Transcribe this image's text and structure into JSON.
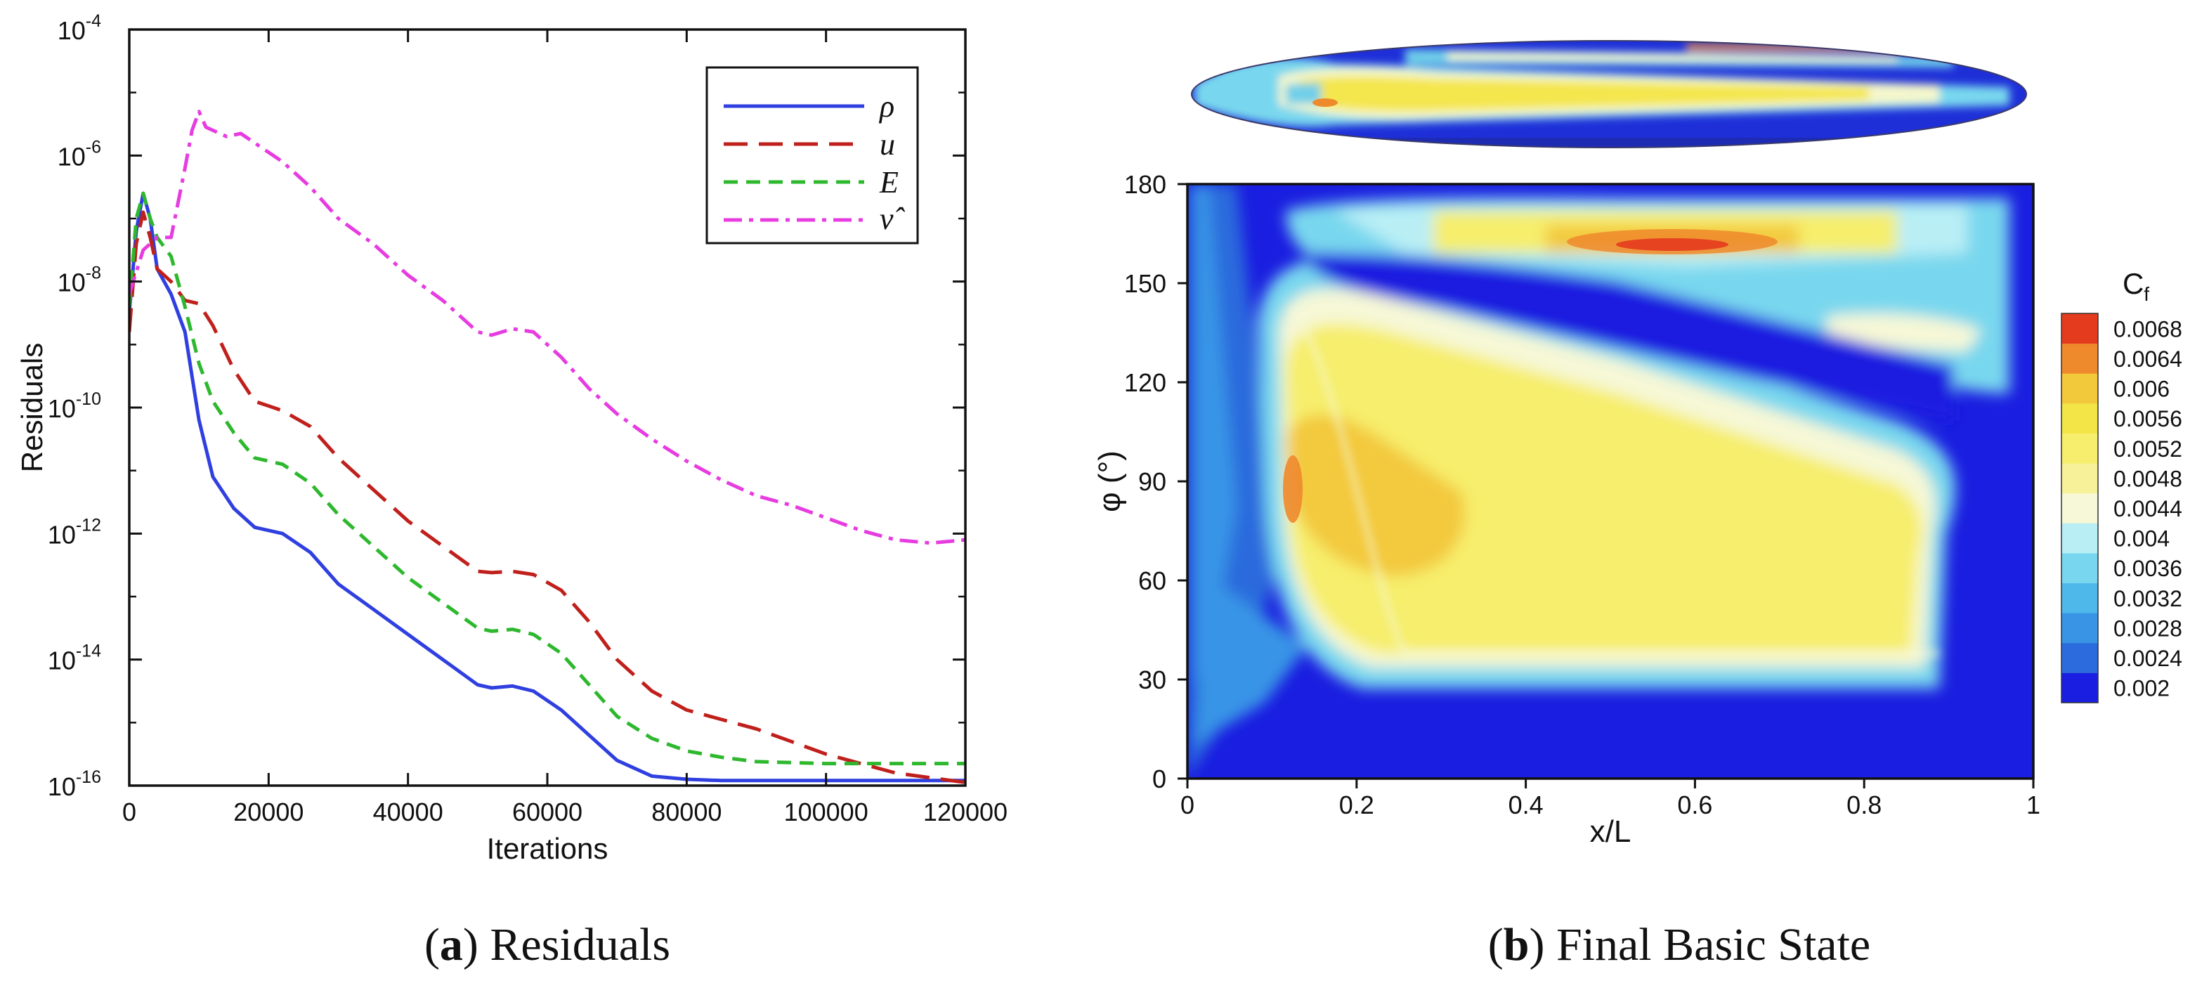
{
  "chart_data": [
    {
      "type": "line",
      "panel": "a",
      "xlabel": "Iterations",
      "ylabel": "Residuals",
      "yscale": "log",
      "xlim": [
        0,
        120000
      ],
      "ylim_exp": [
        -16,
        -4
      ],
      "x_ticks": [
        0,
        20000,
        40000,
        60000,
        80000,
        100000,
        120000
      ],
      "x_tick_labels": [
        "0",
        "20000",
        "40000",
        "60000",
        "80000",
        "100000",
        "120000"
      ],
      "y_ticks_exp": [
        -16,
        -14,
        -12,
        -10,
        -8,
        -6,
        -4
      ],
      "y_tick_base": "10",
      "y_tick_sup": [
        "-16",
        "-14",
        "-12",
        "-10",
        "-8",
        "-6",
        "-4"
      ],
      "legend_position": "top-right",
      "series": [
        {
          "name": "ρ",
          "color": "#2f3fe0",
          "dash": "solid",
          "x": [
            0,
            1000,
            2000,
            3000,
            4000,
            6000,
            8000,
            10000,
            12000,
            15000,
            18000,
            22000,
            26000,
            30000,
            35000,
            40000,
            45000,
            50000,
            52000,
            55000,
            58000,
            62000,
            66000,
            70000,
            75000,
            80000,
            85000,
            90000,
            100000,
            110000,
            120000
          ],
          "log10y": [
            -8.5,
            -7.2,
            -6.6,
            -7.0,
            -7.8,
            -8.2,
            -8.8,
            -10.2,
            -11.1,
            -11.6,
            -11.9,
            -12.0,
            -12.3,
            -12.8,
            -13.2,
            -13.6,
            -14.0,
            -14.4,
            -14.45,
            -14.42,
            -14.5,
            -14.8,
            -15.2,
            -15.6,
            -15.85,
            -15.9,
            -15.92,
            -15.92,
            -15.92,
            -15.92,
            -15.92
          ]
        },
        {
          "name": "u",
          "color": "#c0201c",
          "dash": "dash",
          "x": [
            0,
            1000,
            2000,
            3000,
            4000,
            6000,
            8000,
            10000,
            12000,
            15000,
            18000,
            22000,
            26000,
            30000,
            35000,
            40000,
            45000,
            50000,
            52000,
            55000,
            58000,
            62000,
            66000,
            70000,
            75000,
            80000,
            85000,
            90000,
            95000,
            100000,
            110000,
            120000
          ],
          "log10y": [
            -8.8,
            -7.4,
            -6.9,
            -7.3,
            -7.8,
            -8.0,
            -8.3,
            -8.35,
            -8.7,
            -9.4,
            -9.9,
            -10.05,
            -10.3,
            -10.8,
            -11.3,
            -11.8,
            -12.2,
            -12.6,
            -12.62,
            -12.6,
            -12.65,
            -12.9,
            -13.4,
            -14.0,
            -14.5,
            -14.8,
            -14.95,
            -15.1,
            -15.3,
            -15.5,
            -15.8,
            -15.95
          ]
        },
        {
          "name": "E",
          "color": "#2db82d",
          "dash": "shortdash",
          "x": [
            0,
            1000,
            2000,
            3000,
            4000,
            6000,
            8000,
            10000,
            12000,
            15000,
            18000,
            22000,
            26000,
            30000,
            35000,
            40000,
            45000,
            50000,
            52000,
            55000,
            58000,
            62000,
            66000,
            70000,
            75000,
            80000,
            85000,
            90000,
            100000,
            110000,
            120000
          ],
          "log10y": [
            -8.4,
            -7.0,
            -6.6,
            -7.0,
            -7.3,
            -7.6,
            -8.4,
            -9.3,
            -9.9,
            -10.4,
            -10.8,
            -10.9,
            -11.2,
            -11.7,
            -12.2,
            -12.7,
            -13.1,
            -13.5,
            -13.55,
            -13.52,
            -13.6,
            -13.9,
            -14.4,
            -14.9,
            -15.25,
            -15.45,
            -15.55,
            -15.62,
            -15.65,
            -15.65,
            -15.65
          ]
        },
        {
          "name": "ν̂",
          "color": "#e63ce0",
          "dash": "dashdot",
          "x": [
            0,
            2000,
            4000,
            6000,
            8000,
            9000,
            10000,
            11000,
            12000,
            14000,
            16000,
            18000,
            22000,
            26000,
            30000,
            35000,
            40000,
            45000,
            50000,
            52000,
            55000,
            58000,
            62000,
            66000,
            70000,
            75000,
            80000,
            85000,
            90000,
            95000,
            100000,
            105000,
            110000,
            115000,
            120000
          ],
          "log10y": [
            -8.2,
            -7.5,
            -7.3,
            -7.3,
            -6.2,
            -5.6,
            -5.3,
            -5.55,
            -5.6,
            -5.7,
            -5.65,
            -5.8,
            -6.1,
            -6.5,
            -7.0,
            -7.4,
            -7.9,
            -8.3,
            -8.8,
            -8.85,
            -8.75,
            -8.8,
            -9.2,
            -9.7,
            -10.1,
            -10.5,
            -10.85,
            -11.15,
            -11.4,
            -11.55,
            -11.75,
            -11.95,
            -12.1,
            -12.15,
            -12.1
          ]
        }
      ],
      "caption_label": "a",
      "caption_text": "Residuals"
    },
    {
      "type": "heatmap",
      "panel": "b",
      "variant": "filled-contour",
      "xlabel": "x/L",
      "ylabel": "φ (°)",
      "xlim": [
        0,
        1
      ],
      "ylim": [
        0,
        180
      ],
      "x_ticks": [
        0,
        0.2,
        0.4,
        0.6,
        0.8,
        1
      ],
      "x_tick_labels": [
        "0",
        "0.2",
        "0.4",
        "0.6",
        "0.8",
        "1"
      ],
      "y_ticks": [
        0,
        30,
        60,
        90,
        120,
        150,
        180
      ],
      "y_tick_labels": [
        "0",
        "30",
        "60",
        "90",
        "120",
        "150",
        "180"
      ],
      "colorbar": {
        "title": "C",
        "title_sub": "f",
        "levels": [
          0.002,
          0.0024,
          0.0028,
          0.0032,
          0.0036,
          0.004,
          0.0044,
          0.0048,
          0.0052,
          0.0056,
          0.006,
          0.0064,
          0.0068
        ],
        "labels": [
          "0.002",
          "0.0024",
          "0.0028",
          "0.0032",
          "0.0036",
          "0.004",
          "0.0044",
          "0.0048",
          "0.0052",
          "0.0056",
          "0.006",
          "0.0064",
          "0.0068"
        ],
        "colors": [
          "#1a1ee0",
          "#2b6bdd",
          "#3994e6",
          "#4fb8ea",
          "#78d7ee",
          "#b9eef5",
          "#f6f8d7",
          "#f7f29a",
          "#f6ee6c",
          "#f3e447",
          "#f3c93c",
          "#ee8a2c",
          "#e43b1e"
        ]
      },
      "caption_label": "b",
      "caption_text": "Final Basic State"
    }
  ]
}
